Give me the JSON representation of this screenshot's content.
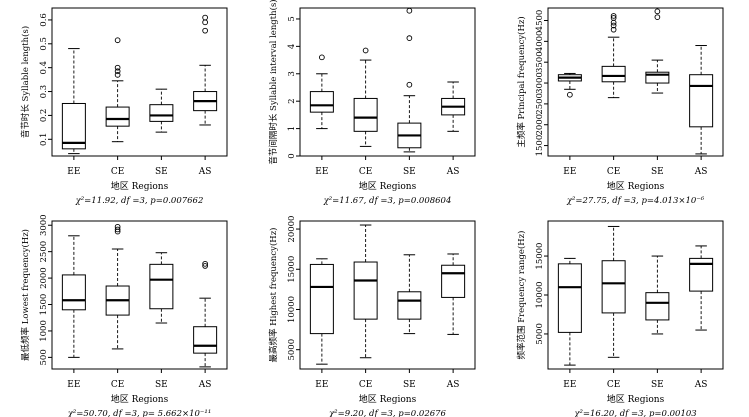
{
  "chart_data": [
    {
      "type": "box",
      "panel": "a",
      "ylabel": "音节时长 Syllable length(s)",
      "xlabel": "地区  Regions",
      "stat_line": "χ²=11.92, df =3, p=0.007662",
      "categories": [
        "EE",
        "CE",
        "SE",
        "AS"
      ],
      "yticks": [
        0.1,
        0.2,
        0.3,
        0.4,
        0.5,
        0.6
      ],
      "ylim": [
        0.03,
        0.65
      ],
      "boxes": [
        {
          "region": "EE",
          "wlo": 0.04,
          "q1": 0.06,
          "med": 0.085,
          "q3": 0.25,
          "whi": 0.48,
          "outliers": []
        },
        {
          "region": "CE",
          "wlo": 0.09,
          "q1": 0.155,
          "med": 0.185,
          "q3": 0.235,
          "whi": 0.345,
          "outliers": [
            0.37,
            0.385,
            0.4,
            0.515
          ]
        },
        {
          "region": "SE",
          "wlo": 0.13,
          "q1": 0.175,
          "med": 0.2,
          "q3": 0.245,
          "whi": 0.31,
          "outliers": []
        },
        {
          "region": "AS",
          "wlo": 0.16,
          "q1": 0.22,
          "med": 0.26,
          "q3": 0.3,
          "whi": 0.41,
          "outliers": [
            0.555,
            0.59,
            0.61
          ]
        }
      ]
    },
    {
      "type": "box",
      "panel": "b",
      "ylabel": "音节间隔时长 Syllable interval length(s)",
      "xlabel": "地区  Regions",
      "stat_line": "χ²=11.67, df =3, p=0.008604",
      "categories": [
        "EE",
        "CE",
        "SE",
        "AS"
      ],
      "yticks": [
        0,
        1,
        2,
        3,
        4,
        5
      ],
      "ylim": [
        0,
        5.4
      ],
      "boxes": [
        {
          "region": "EE",
          "wlo": 1.0,
          "q1": 1.6,
          "med": 1.85,
          "q3": 2.35,
          "whi": 3.0,
          "outliers": [
            3.6
          ]
        },
        {
          "region": "CE",
          "wlo": 0.35,
          "q1": 0.9,
          "med": 1.4,
          "q3": 2.1,
          "whi": 3.5,
          "outliers": [
            3.85
          ]
        },
        {
          "region": "SE",
          "wlo": 0.15,
          "q1": 0.3,
          "med": 0.75,
          "q3": 1.2,
          "whi": 2.2,
          "outliers": [
            2.6,
            4.3,
            5.3
          ]
        },
        {
          "region": "AS",
          "wlo": 0.9,
          "q1": 1.5,
          "med": 1.8,
          "q3": 2.1,
          "whi": 2.7,
          "outliers": []
        }
      ]
    },
    {
      "type": "box",
      "panel": "c",
      "ylabel": "主频率  Principal frequency(Hz)",
      "xlabel": "地区  Regions",
      "stat_line": "χ²=27.75, df =3, p=4.013×10⁻⁶",
      "categories": [
        "EE",
        "CE",
        "SE",
        "AS"
      ],
      "yticks": [
        1500,
        2000,
        2500,
        3000,
        3500,
        4000,
        4500
      ],
      "ylim": [
        1250,
        4800
      ],
      "boxes": [
        {
          "region": "EE",
          "wlo": 2850,
          "q1": 3050,
          "med": 3130,
          "q3": 3200,
          "whi": 3230,
          "outliers": [
            2720
          ]
        },
        {
          "region": "CE",
          "wlo": 2650,
          "q1": 3030,
          "med": 3170,
          "q3": 3400,
          "whi": 4100,
          "outliers": [
            4280,
            4380,
            4450,
            4560,
            4610
          ]
        },
        {
          "region": "SE",
          "wlo": 2760,
          "q1": 3000,
          "med": 3200,
          "q3": 3260,
          "whi": 3550,
          "outliers": [
            4580,
            4720
          ]
        },
        {
          "region": "AS",
          "wlo": 1300,
          "q1": 1950,
          "med": 2930,
          "q3": 3200,
          "whi": 3900,
          "outliers": []
        }
      ]
    },
    {
      "type": "box",
      "panel": "d",
      "ylabel": "最低频率  Lowest frequency(Hz)",
      "xlabel": "地区  Regions",
      "stat_line": "χ²=50.70, df =3, p= 5.662×10⁻¹¹",
      "categories": [
        "EE",
        "CE",
        "SE",
        "AS"
      ],
      "yticks": [
        500,
        1000,
        1500,
        2000,
        2500,
        3000
      ],
      "ylim": [
        280,
        3080
      ],
      "boxes": [
        {
          "region": "EE",
          "wlo": 500,
          "q1": 1400,
          "med": 1580,
          "q3": 2060,
          "whi": 2800,
          "outliers": []
        },
        {
          "region": "CE",
          "wlo": 660,
          "q1": 1300,
          "med": 1580,
          "q3": 1850,
          "whi": 2550,
          "outliers": [
            2880,
            2920,
            2970
          ]
        },
        {
          "region": "SE",
          "wlo": 1150,
          "q1": 1420,
          "med": 1970,
          "q3": 2260,
          "whi": 2480,
          "outliers": []
        },
        {
          "region": "AS",
          "wlo": 320,
          "q1": 580,
          "med": 720,
          "q3": 1080,
          "whi": 1620,
          "outliers": [
            2230,
            2270
          ]
        }
      ]
    },
    {
      "type": "box",
      "panel": "e",
      "ylabel": "最高频率  Highest frequency(Hz)",
      "xlabel": "地区  Regions",
      "stat_line": "χ²=9.20, df =3, p=0.02676",
      "categories": [
        "EE",
        "CE",
        "SE",
        "AS"
      ],
      "yticks": [
        5000,
        10000,
        15000,
        20000
      ],
      "ylim": [
        2600,
        21000
      ],
      "boxes": [
        {
          "region": "EE",
          "wlo": 3200,
          "q1": 7000,
          "med": 12800,
          "q3": 15600,
          "whi": 16300,
          "outliers": []
        },
        {
          "region": "CE",
          "wlo": 4000,
          "q1": 8800,
          "med": 13600,
          "q3": 15900,
          "whi": 20500,
          "outliers": []
        },
        {
          "region": "SE",
          "wlo": 7000,
          "q1": 8800,
          "med": 11100,
          "q3": 12200,
          "whi": 16800,
          "outliers": []
        },
        {
          "region": "AS",
          "wlo": 6900,
          "q1": 11500,
          "med": 14500,
          "q3": 15500,
          "whi": 16900,
          "outliers": []
        }
      ]
    },
    {
      "type": "box",
      "panel": "f",
      "ylabel": "频率范围  Frequency range(Hz)",
      "xlabel": "地区  Regions",
      "stat_line": "χ²=16.20, df =3, p=0.00103",
      "categories": [
        "EE",
        "CE",
        "SE",
        "AS"
      ],
      "yticks": [
        5000,
        10000,
        15000
      ],
      "ylim": [
        500,
        19500
      ],
      "boxes": [
        {
          "region": "EE",
          "wlo": 1000,
          "q1": 5200,
          "med": 11000,
          "q3": 14000,
          "whi": 14700,
          "outliers": []
        },
        {
          "region": "CE",
          "wlo": 2000,
          "q1": 7700,
          "med": 11500,
          "q3": 14400,
          "whi": 18800,
          "outliers": []
        },
        {
          "region": "SE",
          "wlo": 5000,
          "q1": 6800,
          "med": 9000,
          "q3": 10300,
          "whi": 15000,
          "outliers": []
        },
        {
          "region": "AS",
          "wlo": 5500,
          "q1": 10500,
          "med": 14000,
          "q3": 14700,
          "whi": 16300,
          "outliers": []
        }
      ]
    }
  ]
}
